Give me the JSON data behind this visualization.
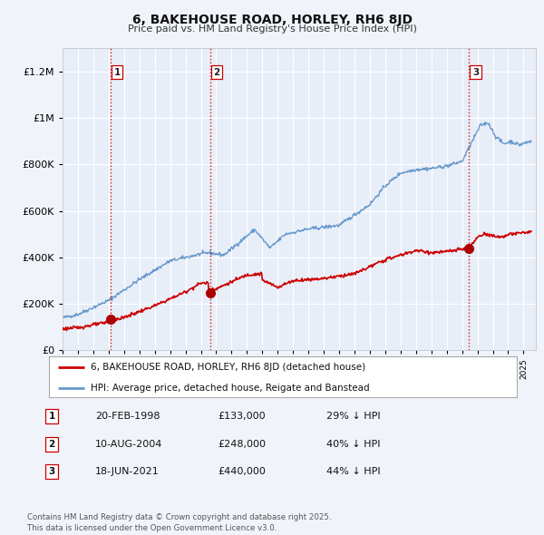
{
  "title": "6, BAKEHOUSE ROAD, HORLEY, RH6 8JD",
  "subtitle": "Price paid vs. HM Land Registry's House Price Index (HPI)",
  "bg_color": "#f0f4fa",
  "plot_bg_color": "#e8eef8",
  "grid_color": "#ffffff",
  "red_line_color": "#cc0000",
  "blue_line_color": "#6699cc",
  "sale_marker_color": "#aa0000",
  "sale_dates": [
    1998.13,
    2004.61,
    2021.46
  ],
  "sale_prices": [
    133000,
    248000,
    440000
  ],
  "sale_labels": [
    "1",
    "2",
    "3"
  ],
  "sale_info": [
    {
      "num": "1",
      "date": "20-FEB-1998",
      "price": "£133,000",
      "pct": "29% ↓ HPI"
    },
    {
      "num": "2",
      "date": "10-AUG-2004",
      "price": "£248,000",
      "pct": "40% ↓ HPI"
    },
    {
      "num": "3",
      "date": "18-JUN-2021",
      "price": "£440,000",
      "pct": "44% ↓ HPI"
    }
  ],
  "legend_red_label": "6, BAKEHOUSE ROAD, HORLEY, RH6 8JD (detached house)",
  "legend_blue_label": "HPI: Average price, detached house, Reigate and Banstead",
  "footer": "Contains HM Land Registry data © Crown copyright and database right 2025.\nThis data is licensed under the Open Government Licence v3.0.",
  "ylim": [
    0,
    1300000
  ],
  "yticks": [
    0,
    200000,
    400000,
    600000,
    800000,
    1000000,
    1200000
  ],
  "ytick_labels": [
    "£0",
    "£200K",
    "£400K",
    "£600K",
    "£800K",
    "£1M",
    "£1.2M"
  ],
  "xlim_start": 1995.0,
  "xlim_end": 2025.8
}
